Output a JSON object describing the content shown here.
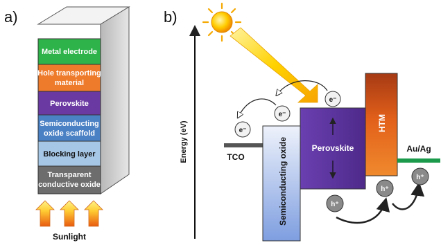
{
  "panel_a": {
    "label": "a)",
    "layers": [
      {
        "text": "Metal electrode",
        "color": "#2db34a"
      },
      {
        "text": [
          "Hole transporting",
          "material"
        ],
        "color": "#ee7a2b"
      },
      {
        "text": "Perovskite",
        "color": "#6a3aa2"
      },
      {
        "text": [
          "Semiconducting",
          "oxide scaffold"
        ],
        "color": "#4a80c4"
      },
      {
        "text": "Blocking layer",
        "color": "#a7c7e6"
      },
      {
        "text": [
          "Transparent",
          "conductive oxide"
        ],
        "color": "#6d6d6d"
      }
    ],
    "sunlight_label": "Sunlight"
  },
  "panel_b": {
    "label": "b)",
    "y_axis_label": "Energy (eV)",
    "tco_label": "TCO",
    "scaffold_label": "Semiconducting oxide",
    "perovskite_label": "Perovskite",
    "htm_label": "HTM",
    "contact_label": "Au/Ag",
    "electron_symbol": "e⁻",
    "hole_symbol": "h⁺",
    "colors": {
      "tco": "#555555",
      "scaffold": "#b8c8ee",
      "perovskite": "#6a3aa2",
      "htm": "#e66a1e",
      "contact": "#1a9a4a",
      "sun": "#f5a800"
    }
  }
}
